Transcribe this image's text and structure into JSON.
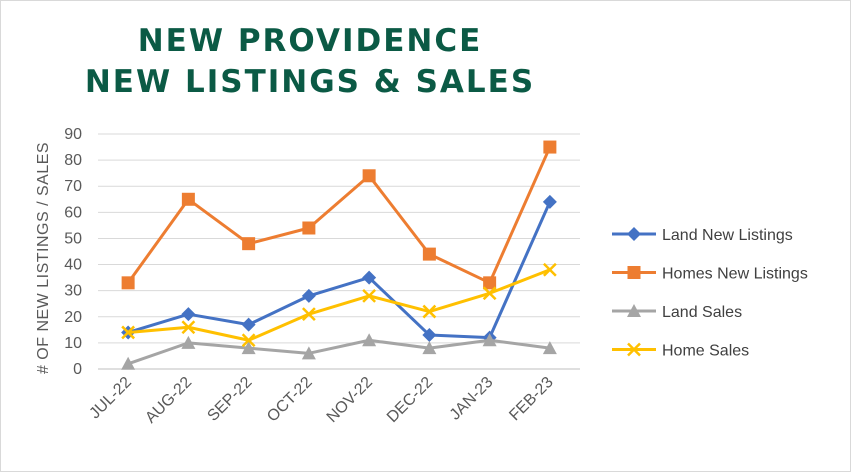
{
  "chart_data": {
    "type": "line",
    "title_lines": [
      "NEW PROVIDENCE",
      "NEW LISTINGS & SALES"
    ],
    "ylabel": "# OF NEW LISTINGS / SALES",
    "xlabel": "",
    "categories": [
      "JUL-22",
      "AUG-22",
      "SEP-22",
      "OCT-22",
      "NOV-22",
      "DEC-22",
      "JAN-23",
      "FEB-23"
    ],
    "ylim": [
      0,
      90
    ],
    "yticks": [
      "0",
      "10",
      "20",
      "30",
      "40",
      "50",
      "60",
      "70",
      "80",
      "90"
    ],
    "grid": true,
    "legend_position": "right",
    "series": [
      {
        "name": "Land New Listings",
        "values": [
          14,
          21,
          17,
          28,
          35,
          13,
          12,
          64
        ],
        "color": "#4472c4",
        "marker": "diamond"
      },
      {
        "name": "Homes New Listings",
        "values": [
          33,
          65,
          48,
          54,
          74,
          44,
          33,
          85
        ],
        "color": "#ed7d31",
        "marker": "square"
      },
      {
        "name": "Land Sales",
        "values": [
          2,
          10,
          8,
          6,
          11,
          8,
          11,
          8
        ],
        "color": "#a5a5a5",
        "marker": "triangle"
      },
      {
        "name": "Home Sales",
        "values": [
          14,
          16,
          11,
          21,
          28,
          22,
          29,
          38
        ],
        "color": "#ffc000",
        "marker": "x"
      }
    ]
  }
}
